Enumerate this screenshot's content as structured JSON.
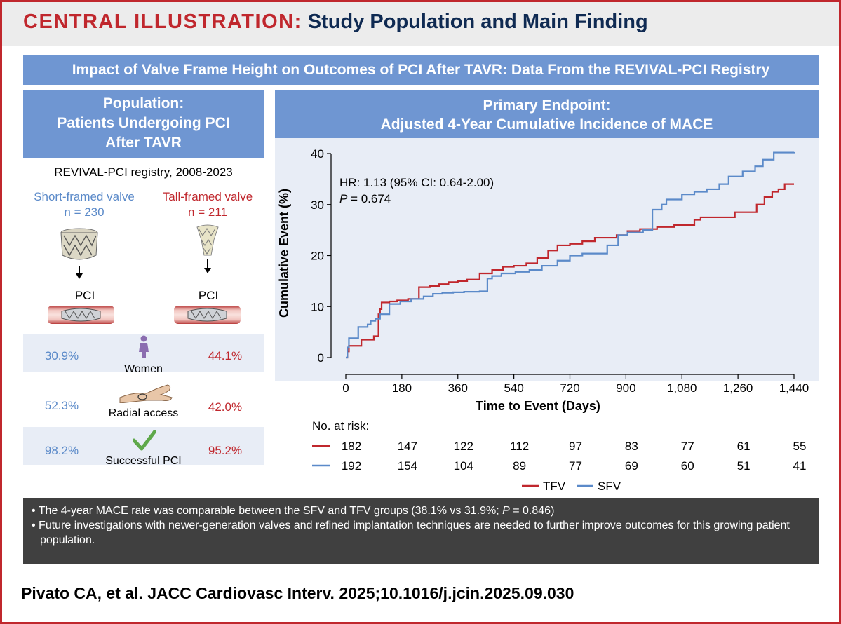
{
  "header": {
    "label": "CENTRAL ILLUSTRATION:",
    "title": "Study Population and Main Finding"
  },
  "banner": "Impact of Valve Frame Height on Outcomes of PCI After TAVR: Data From the REVIVAL-PCI Registry",
  "population": {
    "header_line1": "Population:",
    "header_line2": "Patients Undergoing PCI",
    "header_line3": "After TAVR",
    "registry": "REVIVAL-PCI registry, 2008-2023",
    "sfv": {
      "name": "Short-framed valve",
      "n": "n = 230"
    },
    "tfv": {
      "name": "Tall-framed valve",
      "n": "n = 211"
    },
    "pci_label": "PCI",
    "stats": [
      {
        "label": "Women",
        "sfv": "30.9%",
        "tfv": "44.1%",
        "icon": "woman-icon"
      },
      {
        "label": "Radial access",
        "sfv": "52.3%",
        "tfv": "42.0%",
        "icon": "wrist-icon"
      },
      {
        "label": "Successful PCI",
        "sfv": "98.2%",
        "tfv": "95.2%",
        "icon": "checkmark-icon"
      }
    ]
  },
  "endpoint": {
    "header_line1": "Primary Endpoint:",
    "header_line2": "Adjusted 4-Year Cumulative Incidence of MACE"
  },
  "colors": {
    "tfv": "#c0272d",
    "sfv": "#5b8ac9",
    "plot_bg": "#e8edf6"
  },
  "chart_data": {
    "type": "line",
    "xlabel": "Time to Event (Days)",
    "ylabel": "Cumulative Event (%)",
    "xlim": [
      0,
      1440
    ],
    "ylim": [
      0,
      40
    ],
    "xticks": [
      0,
      180,
      360,
      540,
      720,
      900,
      1080,
      1260,
      1440
    ],
    "xtick_labels": [
      "0",
      "180",
      "360",
      "540",
      "720",
      "900",
      "1,080",
      "1,260",
      "1,440"
    ],
    "yticks": [
      0,
      10,
      20,
      30,
      40
    ],
    "annotation_hr": "HR: 1.13 (95% CI: 0.64-2.00)",
    "annotation_p_label": "P",
    "annotation_p_value": " = 0.674",
    "series": [
      {
        "name": "TFV",
        "color": "#c0272d",
        "x": [
          0,
          5,
          10,
          50,
          90,
          105,
          110,
          115,
          140,
          165,
          200,
          235,
          270,
          300,
          330,
          360,
          390,
          430,
          470,
          505,
          540,
          580,
          615,
          650,
          680,
          720,
          760,
          800,
          870,
          905,
          945,
          1000,
          1055,
          1120,
          1140,
          1250,
          1320,
          1345,
          1370,
          1390,
          1410,
          1440
        ],
        "y": [
          0,
          1.2,
          2.3,
          3.5,
          4.2,
          8.5,
          9.5,
          10.8,
          11.0,
          11.2,
          11.5,
          13.8,
          14.0,
          14.4,
          14.8,
          15.0,
          15.3,
          16.5,
          17.2,
          17.8,
          18.0,
          18.5,
          19.5,
          21.0,
          22.0,
          22.3,
          22.8,
          23.5,
          24.0,
          24.8,
          25.2,
          25.6,
          26.0,
          27.0,
          27.5,
          28.5,
          30.0,
          31.5,
          32.5,
          33.0,
          34.0,
          34.0
        ]
      },
      {
        "name": "SFV",
        "color": "#5b8ac9",
        "x": [
          0,
          5,
          10,
          40,
          70,
          80,
          95,
          110,
          140,
          175,
          210,
          250,
          280,
          310,
          345,
          380,
          430,
          455,
          470,
          500,
          545,
          590,
          630,
          680,
          720,
          760,
          840,
          875,
          905,
          955,
          985,
          1015,
          1030,
          1060,
          1080,
          1120,
          1160,
          1200,
          1230,
          1275,
          1315,
          1340,
          1375,
          1440
        ],
        "y": [
          0,
          2.0,
          3.8,
          6.0,
          6.5,
          7.2,
          7.6,
          8.5,
          10.5,
          11.0,
          11.5,
          12.0,
          12.5,
          12.7,
          12.8,
          12.9,
          13.0,
          15.5,
          16.0,
          16.5,
          16.8,
          17.2,
          18.0,
          19.0,
          20.0,
          20.4,
          22.0,
          24.0,
          24.5,
          25.0,
          29.0,
          30.0,
          31.0,
          31.0,
          32.0,
          32.5,
          33.0,
          34.0,
          35.5,
          36.5,
          37.5,
          38.8,
          40.2,
          40.3
        ]
      }
    ],
    "risk_table": {
      "title": "No. at risk:",
      "rows": [
        {
          "name": "TFV",
          "color": "#c0272d",
          "values": [
            "182",
            "147",
            "122",
            "112",
            "97",
            "83",
            "77",
            "61",
            "55"
          ]
        },
        {
          "name": "SFV",
          "color": "#5b8ac9",
          "values": [
            "192",
            "154",
            "104",
            "89",
            "77",
            "69",
            "60",
            "51",
            "41"
          ]
        }
      ]
    },
    "legend": [
      "TFV",
      "SFV"
    ]
  },
  "summary": {
    "bullet1_a": "The 4-year MACE rate was comparable between the SFV and TFV groups (38.1% vs 31.9%; ",
    "bullet1_p": "P",
    "bullet1_b": " = 0.846)",
    "bullet2": "Future investigations with newer-generation valves and refined implantation techniques are needed to further improve outcomes for this growing patient population."
  },
  "citation": "Pivato CA, et al. JACC Cardiovasc Interv. 2025;10.1016/j.jcin.2025.09.030"
}
